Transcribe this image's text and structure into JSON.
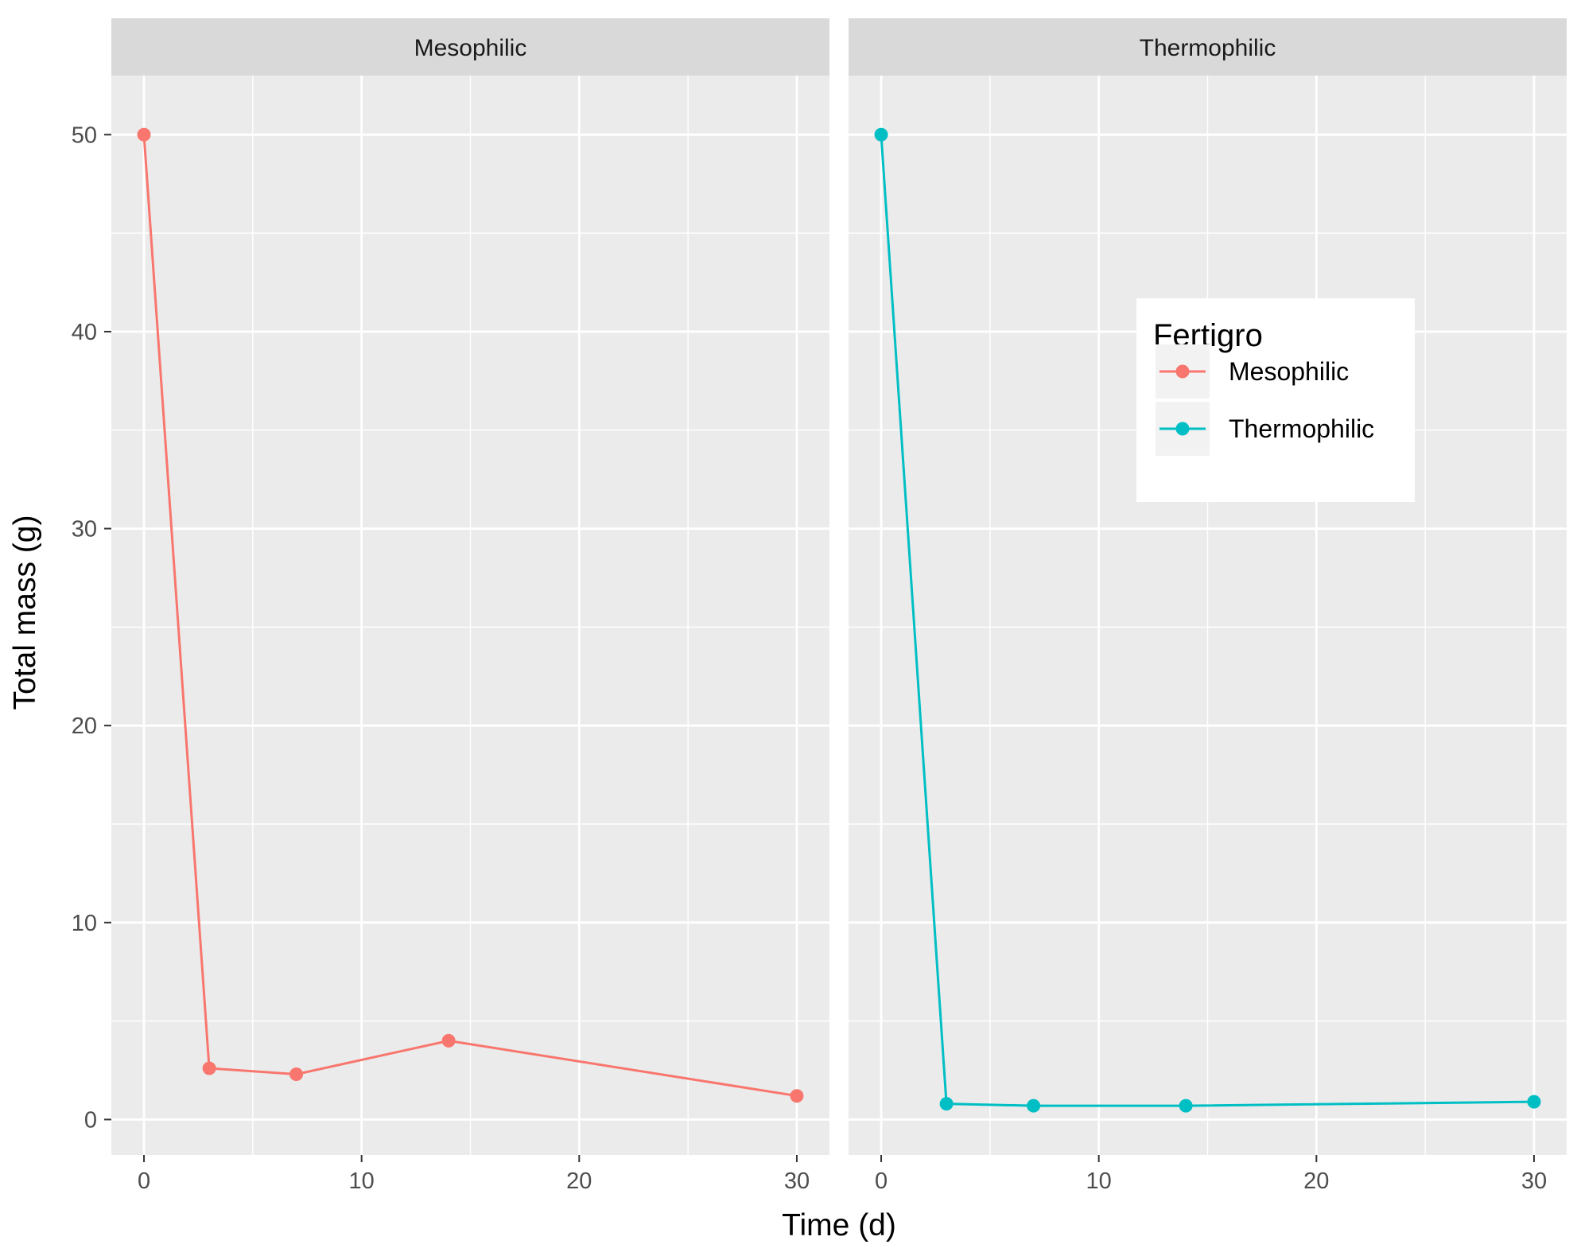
{
  "chart_data": {
    "type": "line",
    "xlabel": "Time (d)",
    "ylabel": "Total mass (g)",
    "xlim": [
      -1.5,
      31.5
    ],
    "ylim": [
      -1.8,
      53.0
    ],
    "xticks": [
      0,
      10,
      20,
      30
    ],
    "yticks": [
      0,
      10,
      20,
      30,
      40,
      50
    ],
    "grid": true,
    "legend": {
      "title": "Fertigro",
      "placement": "right panel, upper right",
      "entries": [
        "Mesophilic",
        "Thermophilic"
      ]
    },
    "panels": [
      {
        "strip": "Mesophilic",
        "series": [
          {
            "name": "Mesophilic",
            "color": "#F8766D",
            "x": [
              0,
              3,
              7,
              14,
              30
            ],
            "y": [
              50.0,
              2.6,
              2.3,
              4.0,
              1.2
            ]
          }
        ]
      },
      {
        "strip": "Thermophilic",
        "series": [
          {
            "name": "Thermophilic",
            "color": "#00BFC4",
            "x": [
              0,
              3,
              7,
              14,
              30
            ],
            "y": [
              50.0,
              0.8,
              0.7,
              0.7,
              0.9
            ]
          }
        ]
      }
    ]
  }
}
